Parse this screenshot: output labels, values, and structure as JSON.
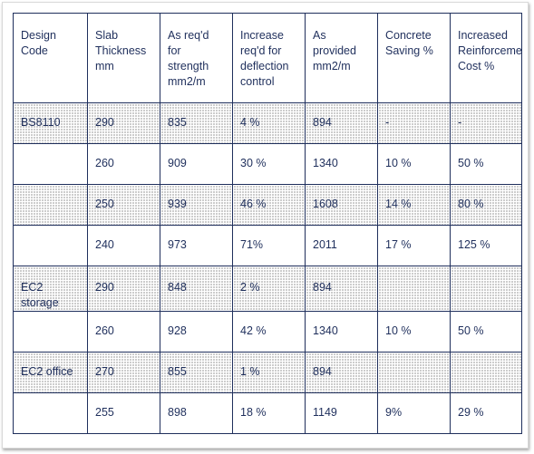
{
  "table": {
    "columns": [
      "Design Code",
      "Slab Thickness mm",
      "As req'd for strength mm2/m",
      "Increase req'd for deflection control",
      "As provided mm2/m",
      "Concrete Saving %",
      "Increased Reinforcement Cost %"
    ],
    "rows": [
      [
        "BS8110",
        "290",
        "835",
        "4 %",
        "894",
        "-",
        "-"
      ],
      [
        "",
        "260",
        "909",
        "30 %",
        "1340",
        "10 %",
        "50 %"
      ],
      [
        "",
        "250",
        "939",
        "46 %",
        "1608",
        "14 %",
        "80 %"
      ],
      [
        "",
        "240",
        "973",
        "71%",
        "2011",
        "17 %",
        "125 %"
      ],
      [
        "EC2 storage",
        "290",
        "848",
        "2 %",
        "894",
        "",
        ""
      ],
      [
        "",
        "260",
        "928",
        "42 %",
        "1340",
        "10 %",
        "50 %"
      ],
      [
        "EC2 office",
        "270",
        "855",
        "1 %",
        "894",
        "",
        ""
      ],
      [
        "",
        "255",
        "898",
        "18 %",
        "1149",
        "9%",
        "29 %"
      ]
    ]
  },
  "colors": {
    "border": "#1f2f5c",
    "text": "#1f2f5c",
    "shade_dot": "#8a8a8a"
  }
}
